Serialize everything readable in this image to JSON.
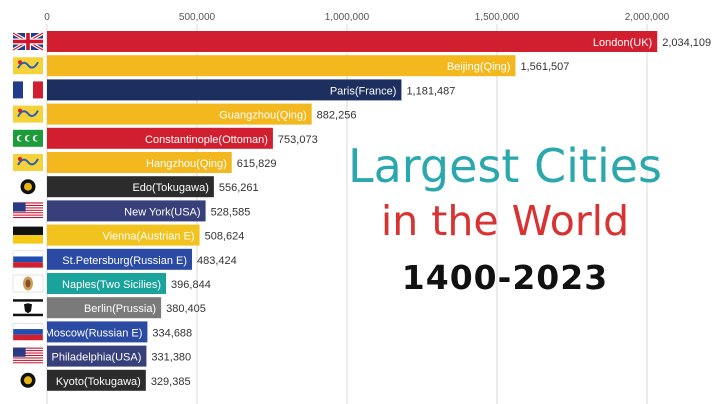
{
  "chart_data": {
    "type": "bar",
    "orientation": "horizontal",
    "xlim": [
      0,
      2100000
    ],
    "x_ticks": [
      0,
      500000,
      1000000,
      1500000,
      2000000
    ],
    "x_tick_labels": [
      "0",
      "500,000",
      "1,000,000",
      "1,500,000",
      "2,000,000"
    ],
    "grid": true,
    "bars": [
      {
        "label": "London(UK)",
        "value": 2034109,
        "value_label": "2,034,109",
        "color": "#d21f2f",
        "text_color": "#ffffff",
        "flag": "uk-flag-icon"
      },
      {
        "label": "Beijing(Qing)",
        "value": 1561507,
        "value_label": "1,561,507",
        "color": "#f2b81e",
        "text_color": "#ffffff",
        "flag": "qing-dragon-flag-icon"
      },
      {
        "label": "Paris(France)",
        "value": 1181487,
        "value_label": "1,181,487",
        "color": "#1c2f5e",
        "text_color": "#ffffff",
        "flag": "france-flag-icon"
      },
      {
        "label": "Guangzhou(Qing)",
        "value": 882256,
        "value_label": "882,256",
        "color": "#f2b81e",
        "text_color": "#ffffff",
        "flag": "qing-dragon-flag-icon"
      },
      {
        "label": "Constantinople(Ottoman)",
        "value": 753073,
        "value_label": "753,073",
        "color": "#d21f2f",
        "text_color": "#ffffff",
        "flag": "ottoman-flag-icon"
      },
      {
        "label": "Hangzhou(Qing)",
        "value": 615829,
        "value_label": "615,829",
        "color": "#f2b81e",
        "text_color": "#ffffff",
        "flag": "qing-dragon-flag-icon"
      },
      {
        "label": "Edo(Tokugawa)",
        "value": 556261,
        "value_label": "556,261",
        "color": "#2c2c2c",
        "text_color": "#ffffff",
        "flag": "tokugawa-crest-icon"
      },
      {
        "label": "New York(USA)",
        "value": 528585,
        "value_label": "528,585",
        "color": "#37407a",
        "text_color": "#ffffff",
        "flag": "usa-flag-icon"
      },
      {
        "label": "Vienna(Austrian E)",
        "value": 508624,
        "value_label": "508,624",
        "color": "#f2c21e",
        "text_color": "#ffffff",
        "flag": "austria-flag-icon"
      },
      {
        "label": "St.Petersburg(Russian E)",
        "value": 483424,
        "value_label": "483,424",
        "color": "#2b4aa3",
        "text_color": "#ffffff",
        "flag": "russia-flag-icon"
      },
      {
        "label": "Naples(Two Sicilies)",
        "value": 396844,
        "value_label": "396,844",
        "color": "#1aa39a",
        "text_color": "#ffffff",
        "flag": "two-sicilies-flag-icon"
      },
      {
        "label": "Berlin(Prussia)",
        "value": 380405,
        "value_label": "380,405",
        "color": "#7a7a7a",
        "text_color": "#ffffff",
        "flag": "prussia-flag-icon"
      },
      {
        "label": "Moscow(Russian E)",
        "value": 334688,
        "value_label": "334,688",
        "color": "#2b4aa3",
        "text_color": "#ffffff",
        "flag": "russia-flag-icon"
      },
      {
        "label": "Philadelphia(USA)",
        "value": 331380,
        "value_label": "331,380",
        "color": "#37407a",
        "text_color": "#ffffff",
        "flag": "usa-flag-icon"
      },
      {
        "label": "Kyoto(Tokugawa)",
        "value": 329385,
        "value_label": "329,385",
        "color": "#2c2c2c",
        "text_color": "#ffffff",
        "flag": "tokugawa-crest-icon"
      }
    ]
  },
  "title": {
    "line1": "Largest Cities",
    "line2": "in the World",
    "years": "1400-2023"
  }
}
